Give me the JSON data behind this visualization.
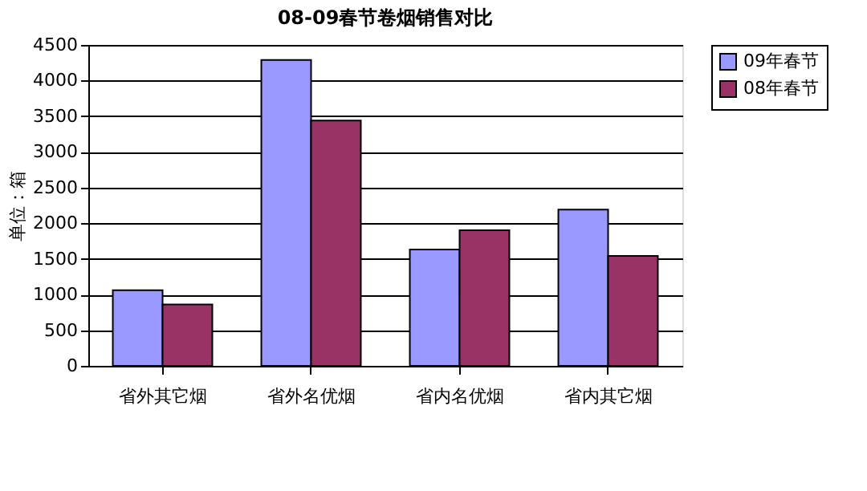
{
  "chart_data": {
    "type": "bar",
    "title": "08-09春节卷烟销售对比",
    "ylabel": "单位：箱",
    "categories": [
      "省外其它烟",
      "省外名优烟",
      "省内名优烟",
      "省内其它烟"
    ],
    "series": [
      {
        "name": "09年春节",
        "color": "#9999ff",
        "values": [
          1060,
          4290,
          1630,
          2190
        ]
      },
      {
        "name": "08年春节",
        "color": "#993366",
        "values": [
          860,
          3440,
          1900,
          1540
        ]
      }
    ],
    "ylim": [
      0,
      4500
    ],
    "yticks": [
      0,
      500,
      1000,
      1500,
      2000,
      2500,
      3000,
      3500,
      4000,
      4500
    ],
    "grid": "y",
    "legend": "right"
  }
}
